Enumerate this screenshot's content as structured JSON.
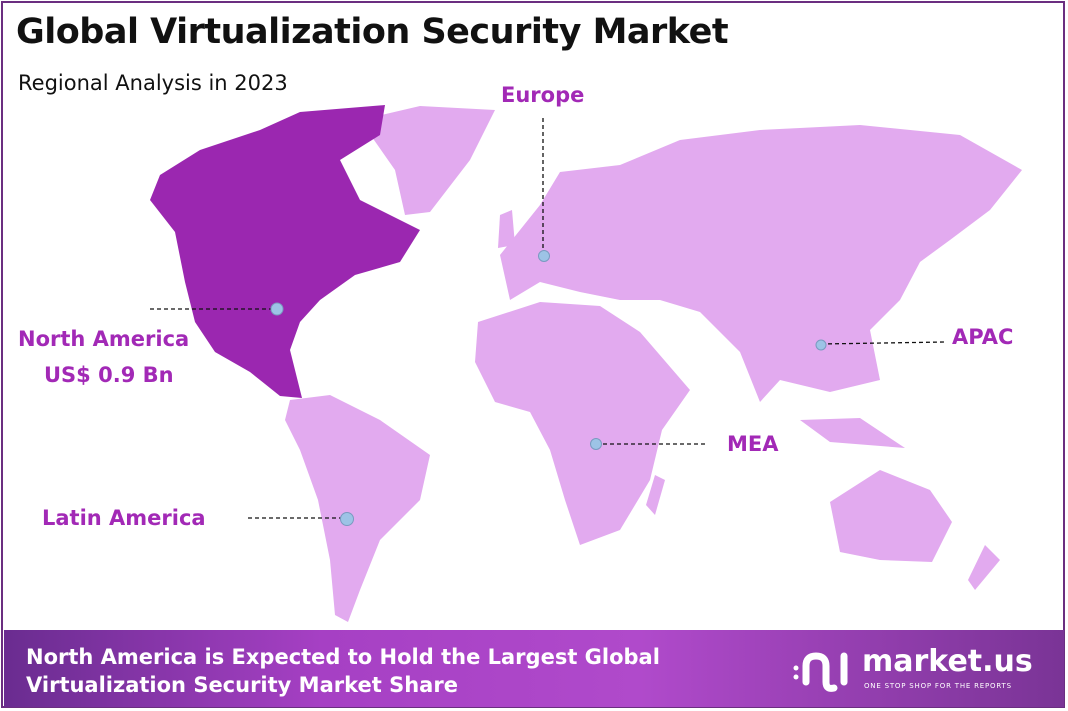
{
  "header": {
    "title": "Global Virtualization Security Market",
    "subtitle": "Regional Analysis in 2023"
  },
  "colors": {
    "highlight_region": "#9b27b0",
    "other_regions": "#e2aaef",
    "label": "#a229b6",
    "marker": "#9dc3e6"
  },
  "regions": [
    {
      "name": "North America",
      "value": "US$ 0.9 Bn",
      "highlighted": true
    },
    {
      "name": "Europe"
    },
    {
      "name": "APAC"
    },
    {
      "name": "MEA"
    },
    {
      "name": "Latin America"
    }
  ],
  "footer": {
    "text_line1": "North America is Expected to Hold the Largest Global",
    "text_line2": "Virtualization  Security Market Share",
    "logo_name": "market.us",
    "logo_tagline": "ONE STOP SHOP FOR THE REPORTS"
  }
}
